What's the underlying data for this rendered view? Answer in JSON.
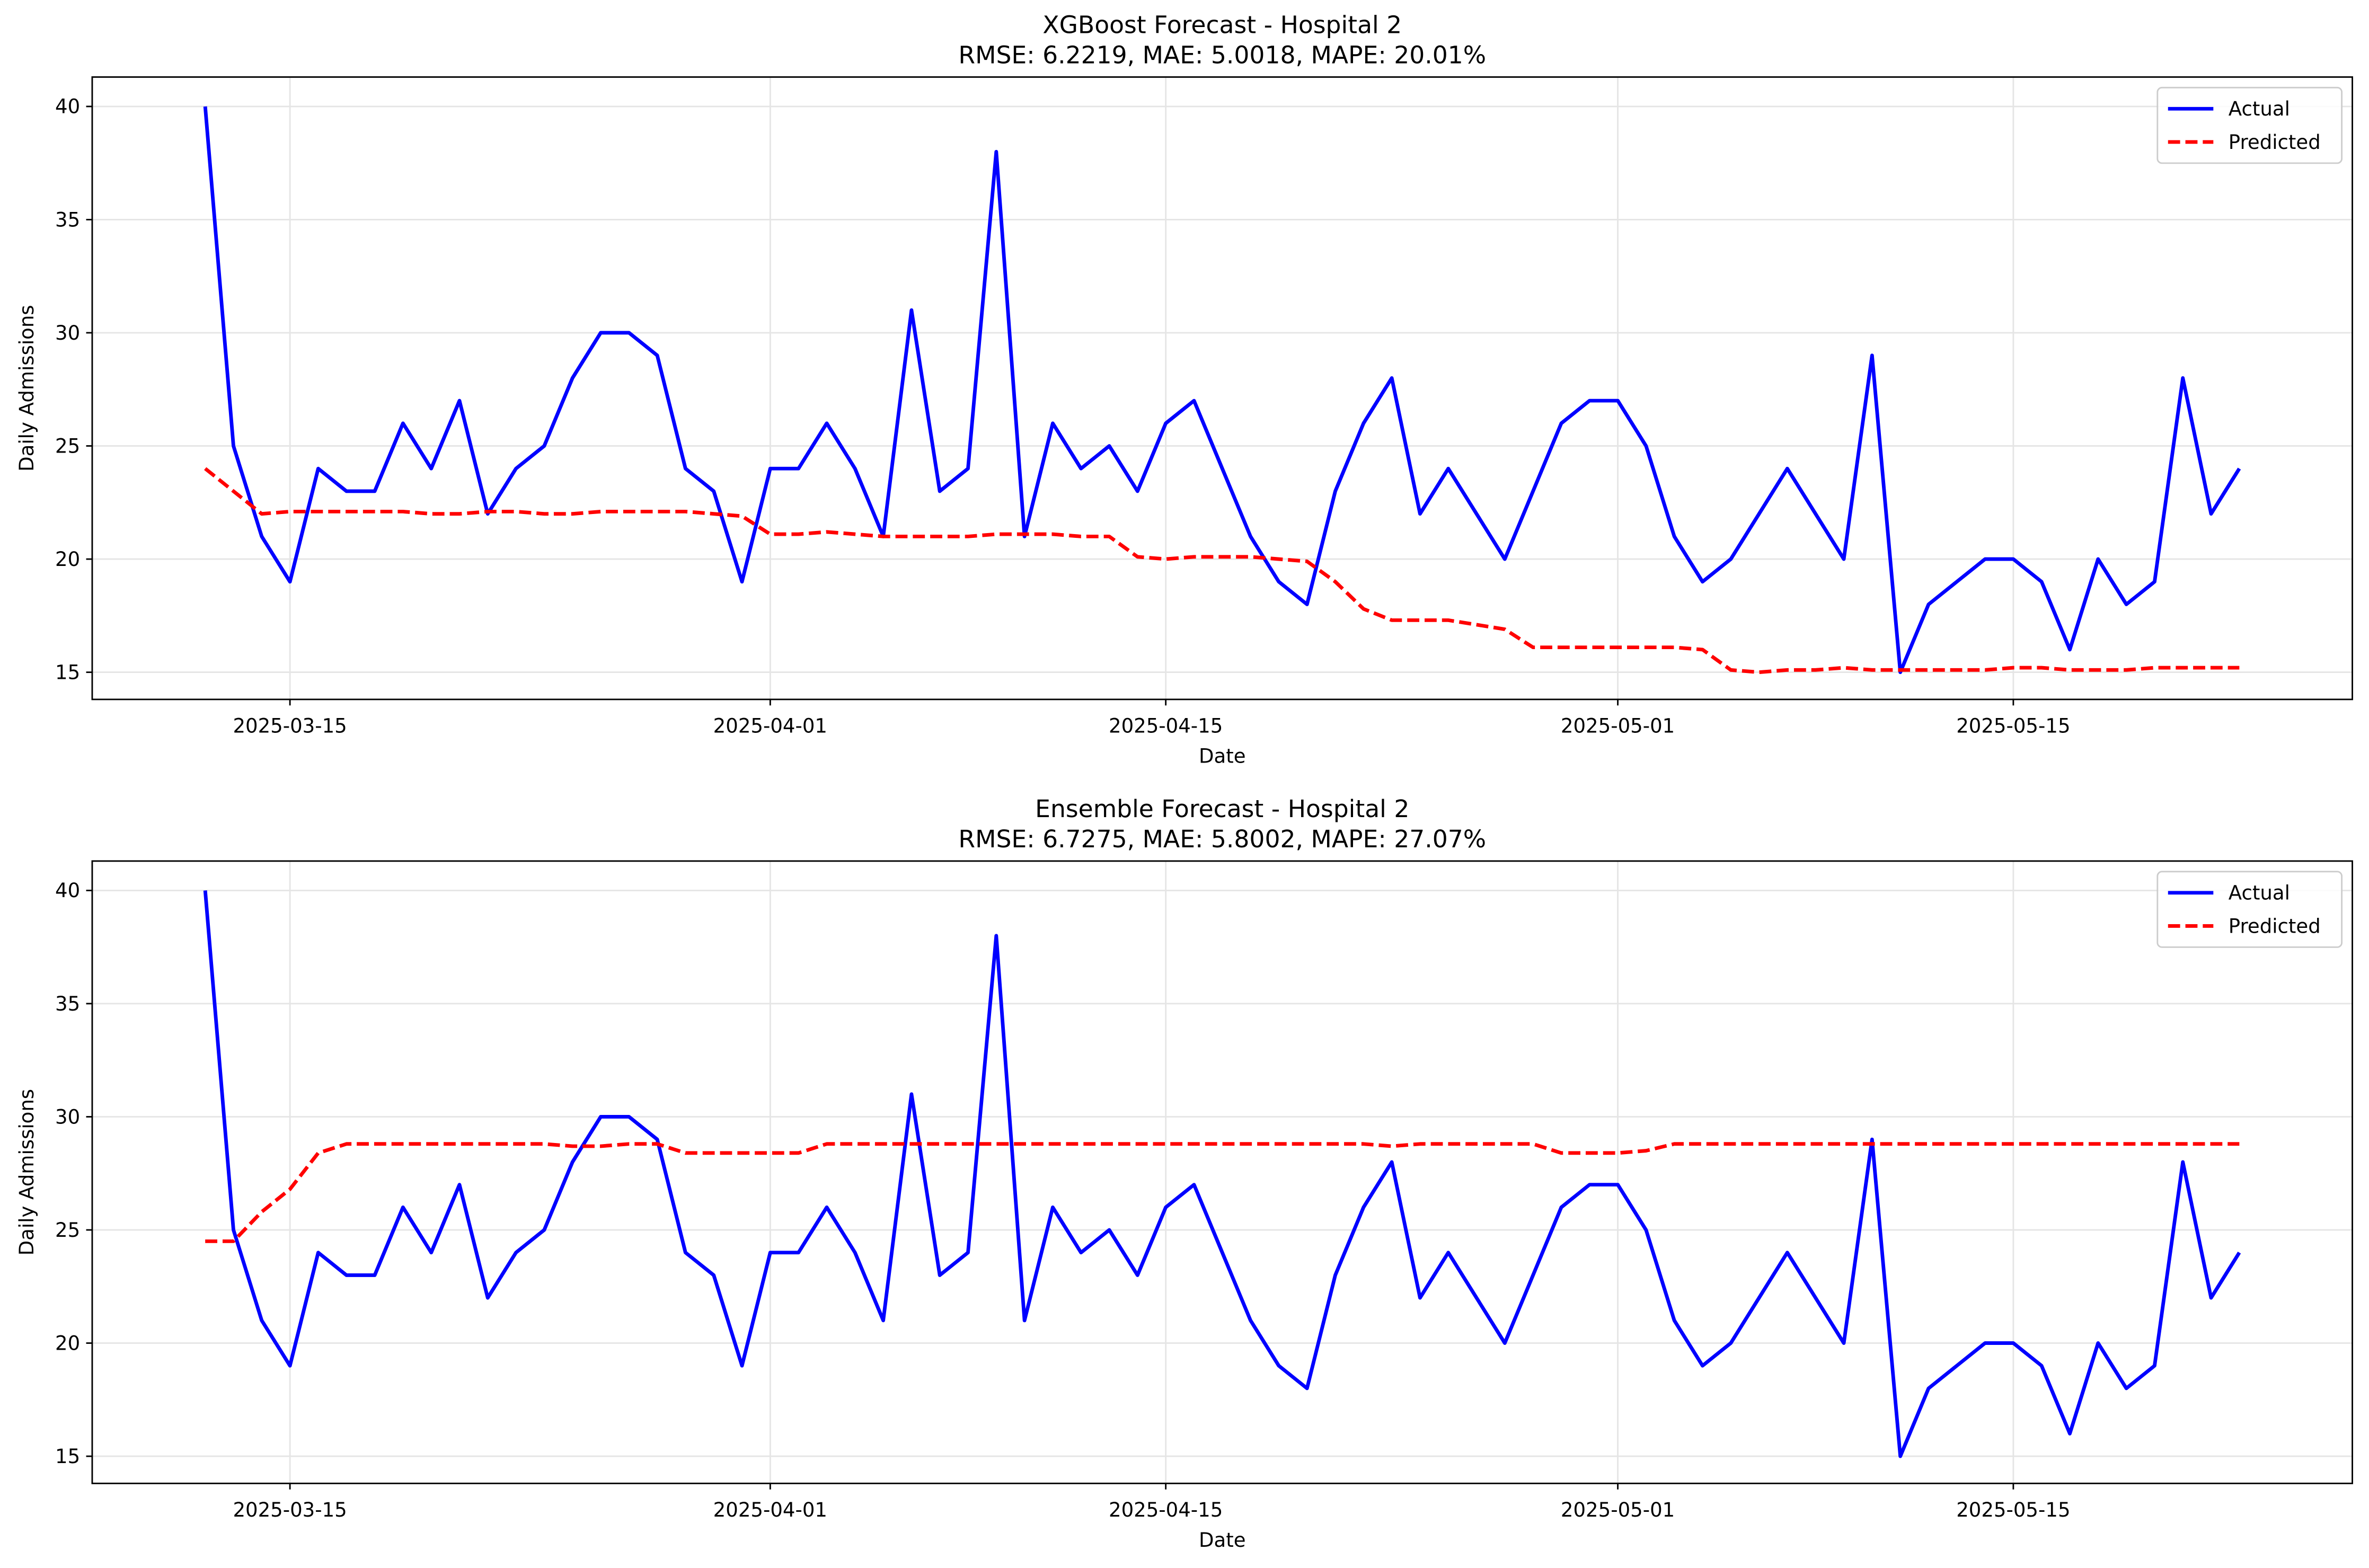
{
  "chart_data": [
    {
      "type": "line",
      "title": "XGBoost Forecast - Hospital 2",
      "subtitle": "RMSE: 6.2219, MAE: 5.0018, MAPE: 20.01%",
      "xlabel": "Date",
      "ylabel": "Daily Admissions",
      "x": [
        "2025-03-12",
        "2025-03-13",
        "2025-03-14",
        "2025-03-15",
        "2025-03-16",
        "2025-03-17",
        "2025-03-18",
        "2025-03-19",
        "2025-03-20",
        "2025-03-21",
        "2025-03-22",
        "2025-03-23",
        "2025-03-24",
        "2025-03-25",
        "2025-03-26",
        "2025-03-27",
        "2025-03-28",
        "2025-03-29",
        "2025-03-30",
        "2025-03-31",
        "2025-04-01",
        "2025-04-02",
        "2025-04-03",
        "2025-04-04",
        "2025-04-05",
        "2025-04-06",
        "2025-04-07",
        "2025-04-08",
        "2025-04-09",
        "2025-04-10",
        "2025-04-11",
        "2025-04-12",
        "2025-04-13",
        "2025-04-14",
        "2025-04-15",
        "2025-04-16",
        "2025-04-17",
        "2025-04-18",
        "2025-04-19",
        "2025-04-20",
        "2025-04-21",
        "2025-04-22",
        "2025-04-23",
        "2025-04-24",
        "2025-04-25",
        "2025-04-26",
        "2025-04-27",
        "2025-04-28",
        "2025-04-29",
        "2025-04-30",
        "2025-05-01",
        "2025-05-02",
        "2025-05-03",
        "2025-05-04",
        "2025-05-05",
        "2025-05-06",
        "2025-05-07",
        "2025-05-08",
        "2025-05-09",
        "2025-05-10",
        "2025-05-11",
        "2025-05-12",
        "2025-05-13",
        "2025-05-14",
        "2025-05-15",
        "2025-05-16",
        "2025-05-17",
        "2025-05-18",
        "2025-05-19",
        "2025-05-20",
        "2025-05-21",
        "2025-05-22",
        "2025-05-23"
      ],
      "series": [
        {
          "name": "Actual",
          "color": "#0000ff",
          "dash": "solid",
          "values": [
            40,
            25,
            21,
            19,
            24,
            23,
            23,
            26,
            24,
            27,
            22,
            24,
            25,
            28,
            30,
            30,
            29,
            24,
            23,
            19,
            24,
            24,
            26,
            24,
            21,
            31,
            23,
            24,
            38,
            21,
            26,
            24,
            25,
            23,
            26,
            27,
            24,
            21,
            19,
            18,
            23,
            26,
            28,
            22,
            24,
            22,
            20,
            23,
            26,
            27,
            27,
            25,
            21,
            19,
            20,
            22,
            24,
            22,
            20,
            29,
            15,
            18,
            19,
            20,
            20,
            19,
            16,
            20,
            18,
            19,
            28,
            22,
            24
          ]
        },
        {
          "name": "Predicted",
          "color": "#ff0000",
          "dash": "dashed",
          "values": [
            24.0,
            23.0,
            22.0,
            22.1,
            22.1,
            22.1,
            22.1,
            22.1,
            22.0,
            22.0,
            22.1,
            22.1,
            22.0,
            22.0,
            22.1,
            22.1,
            22.1,
            22.1,
            22.0,
            21.9,
            21.1,
            21.1,
            21.2,
            21.1,
            21.0,
            21.0,
            21.0,
            21.0,
            21.1,
            21.1,
            21.1,
            21.0,
            21.0,
            20.1,
            20.0,
            20.1,
            20.1,
            20.1,
            20.0,
            19.9,
            19.0,
            17.8,
            17.3,
            17.3,
            17.3,
            17.1,
            16.9,
            16.1,
            16.1,
            16.1,
            16.1,
            16.1,
            16.1,
            16.0,
            15.1,
            15.0,
            15.1,
            15.1,
            15.2,
            15.1,
            15.1,
            15.1,
            15.1,
            15.1,
            15.2,
            15.2,
            15.1,
            15.1,
            15.1,
            15.2,
            15.2,
            15.2,
            15.2
          ]
        }
      ],
      "xlim": [
        "2025-03-08",
        "2025-05-27"
      ],
      "xticks": [
        "2025-03-15",
        "2025-04-01",
        "2025-04-15",
        "2025-05-01",
        "2025-05-15"
      ],
      "ylim": [
        13.8,
        41.3
      ],
      "yticks": [
        15,
        20,
        25,
        30,
        35,
        40
      ],
      "grid": true,
      "legend": "upper right"
    },
    {
      "type": "line",
      "title": "Ensemble Forecast - Hospital 2",
      "subtitle": "RMSE: 6.7275, MAE: 5.8002, MAPE: 27.07%",
      "xlabel": "Date",
      "ylabel": "Daily Admissions",
      "x": [
        "2025-03-12",
        "2025-03-13",
        "2025-03-14",
        "2025-03-15",
        "2025-03-16",
        "2025-03-17",
        "2025-03-18",
        "2025-03-19",
        "2025-03-20",
        "2025-03-21",
        "2025-03-22",
        "2025-03-23",
        "2025-03-24",
        "2025-03-25",
        "2025-03-26",
        "2025-03-27",
        "2025-03-28",
        "2025-03-29",
        "2025-03-30",
        "2025-03-31",
        "2025-04-01",
        "2025-04-02",
        "2025-04-03",
        "2025-04-04",
        "2025-04-05",
        "2025-04-06",
        "2025-04-07",
        "2025-04-08",
        "2025-04-09",
        "2025-04-10",
        "2025-04-11",
        "2025-04-12",
        "2025-04-13",
        "2025-04-14",
        "2025-04-15",
        "2025-04-16",
        "2025-04-17",
        "2025-04-18",
        "2025-04-19",
        "2025-04-20",
        "2025-04-21",
        "2025-04-22",
        "2025-04-23",
        "2025-04-24",
        "2025-04-25",
        "2025-04-26",
        "2025-04-27",
        "2025-04-28",
        "2025-04-29",
        "2025-04-30",
        "2025-05-01",
        "2025-05-02",
        "2025-05-03",
        "2025-05-04",
        "2025-05-05",
        "2025-05-06",
        "2025-05-07",
        "2025-05-08",
        "2025-05-09",
        "2025-05-10",
        "2025-05-11",
        "2025-05-12",
        "2025-05-13",
        "2025-05-14",
        "2025-05-15",
        "2025-05-16",
        "2025-05-17",
        "2025-05-18",
        "2025-05-19",
        "2025-05-20",
        "2025-05-21",
        "2025-05-22",
        "2025-05-23"
      ],
      "series": [
        {
          "name": "Actual",
          "color": "#0000ff",
          "dash": "solid",
          "values": [
            40,
            25,
            21,
            19,
            24,
            23,
            23,
            26,
            24,
            27,
            22,
            24,
            25,
            28,
            30,
            30,
            29,
            24,
            23,
            19,
            24,
            24,
            26,
            24,
            21,
            31,
            23,
            24,
            38,
            21,
            26,
            24,
            25,
            23,
            26,
            27,
            24,
            21,
            19,
            18,
            23,
            26,
            28,
            22,
            24,
            22,
            20,
            23,
            26,
            27,
            27,
            25,
            21,
            19,
            20,
            22,
            24,
            22,
            20,
            29,
            15,
            18,
            19,
            20,
            20,
            19,
            16,
            20,
            18,
            19,
            28,
            22,
            24
          ]
        },
        {
          "name": "Predicted",
          "color": "#ff0000",
          "dash": "dashed",
          "values": [
            24.5,
            24.5,
            25.8,
            26.8,
            28.4,
            28.8,
            28.8,
            28.8,
            28.8,
            28.8,
            28.8,
            28.8,
            28.8,
            28.7,
            28.7,
            28.8,
            28.8,
            28.4,
            28.4,
            28.4,
            28.4,
            28.4,
            28.8,
            28.8,
            28.8,
            28.8,
            28.8,
            28.8,
            28.8,
            28.8,
            28.8,
            28.8,
            28.8,
            28.8,
            28.8,
            28.8,
            28.8,
            28.8,
            28.8,
            28.8,
            28.8,
            28.8,
            28.7,
            28.8,
            28.8,
            28.8,
            28.8,
            28.8,
            28.4,
            28.4,
            28.4,
            28.5,
            28.8,
            28.8,
            28.8,
            28.8,
            28.8,
            28.8,
            28.8,
            28.8,
            28.8,
            28.8,
            28.8,
            28.8,
            28.8,
            28.8,
            28.8,
            28.8,
            28.8,
            28.8,
            28.8,
            28.8,
            28.8
          ]
        }
      ],
      "xlim": [
        "2025-03-08",
        "2025-05-27"
      ],
      "xticks": [
        "2025-03-15",
        "2025-04-01",
        "2025-04-15",
        "2025-05-01",
        "2025-05-15"
      ],
      "ylim": [
        13.8,
        41.3
      ],
      "yticks": [
        15,
        20,
        25,
        30,
        35,
        40
      ],
      "grid": true,
      "legend": "upper right"
    }
  ]
}
